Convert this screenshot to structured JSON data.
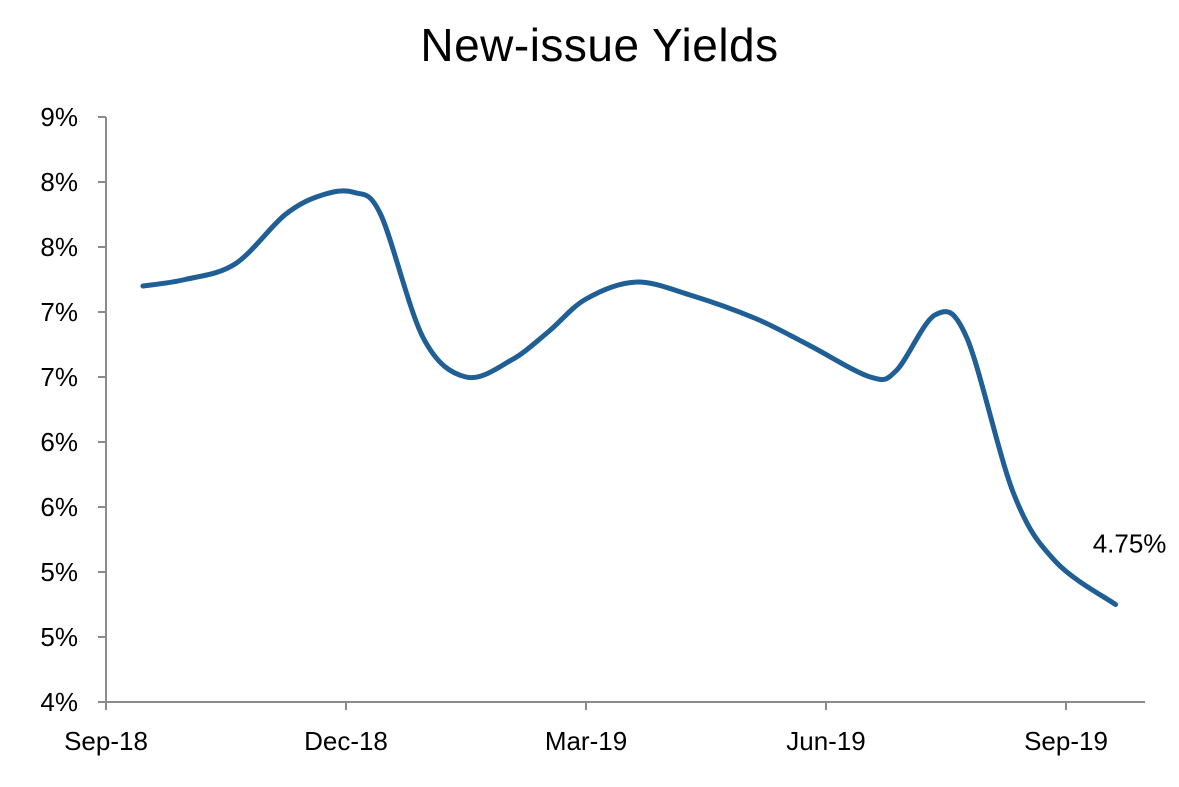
{
  "chart_data": {
    "type": "line",
    "title": "New-issue Yields",
    "xlabel": "",
    "ylabel": "",
    "x_ticks": [
      "Sep-18",
      "Dec-18",
      "Mar-19",
      "Jun-19",
      "Sep-19"
    ],
    "y_ticks": [
      "4%",
      "5%",
      "5%",
      "6%",
      "6%",
      "7%",
      "7%",
      "8%",
      "8%",
      "9%"
    ],
    "ylim": [
      4.0,
      8.5
    ],
    "grid": false,
    "legend": "none",
    "series": [
      {
        "color": "#1f5f96",
        "points": [
          {
            "x": "2018-09-15",
            "y": 7.2
          },
          {
            "x": "2018-10-01",
            "y": 7.25
          },
          {
            "x": "2018-10-20",
            "y": 7.37
          },
          {
            "x": "2018-11-08",
            "y": 7.75
          },
          {
            "x": "2018-11-22",
            "y": 7.9
          },
          {
            "x": "2018-12-04",
            "y": 7.92
          },
          {
            "x": "2018-12-14",
            "y": 7.75
          },
          {
            "x": "2018-12-30",
            "y": 6.8
          },
          {
            "x": "2019-01-15",
            "y": 6.5
          },
          {
            "x": "2019-02-01",
            "y": 6.63
          },
          {
            "x": "2019-02-15",
            "y": 6.85
          },
          {
            "x": "2019-03-01",
            "y": 7.1
          },
          {
            "x": "2019-03-20",
            "y": 7.23
          },
          {
            "x": "2019-04-10",
            "y": 7.13
          },
          {
            "x": "2019-05-05",
            "y": 6.95
          },
          {
            "x": "2019-05-25",
            "y": 6.75
          },
          {
            "x": "2019-06-18",
            "y": 6.5
          },
          {
            "x": "2019-06-28",
            "y": 6.55
          },
          {
            "x": "2019-07-13",
            "y": 6.98
          },
          {
            "x": "2019-07-25",
            "y": 6.8
          },
          {
            "x": "2019-08-12",
            "y": 5.6
          },
          {
            "x": "2019-08-28",
            "y": 5.08
          },
          {
            "x": "2019-09-20",
            "y": 4.75
          }
        ]
      }
    ],
    "annotations": [
      {
        "text": "4.75%",
        "x": "2019-09-20",
        "y": 4.75
      }
    ]
  }
}
